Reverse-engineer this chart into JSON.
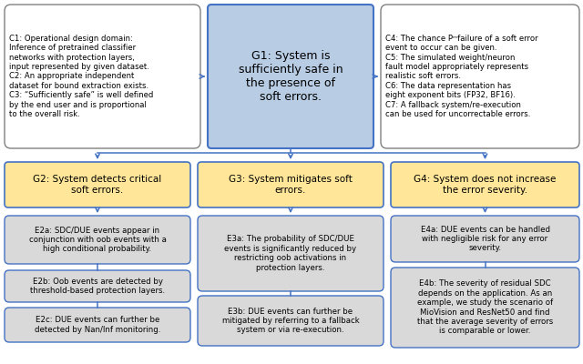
{
  "bg_color": "#ffffff",
  "line_color": "#4472c4",
  "g1_color": "#b8cce4",
  "g1_border": "#4472c4",
  "g234_color": "#ffe699",
  "g234_border": "#4472c4",
  "e_color": "#d9d9d9",
  "e_border": "#4472c4",
  "c_color": "#ffffff",
  "c_border": "#808080",
  "g1_text": "G1: System is\nsufficiently safe in\nthe presence of\nsoft errors.",
  "c_left_text": "C1: Operational design domain:\nInference of pretrained classifier\nnetworks with protection layers,\ninput represented by given dataset.\nC2: An appropriate independent\ndataset for bound extraction exists.\nC3: “Sufficiently safe” is well defined\nby the end user and is proportional\nto the overall risk.",
  "c_right_text": "C4: The chance Pᵐfailure of a soft error\nevent to occur can be given.\nC5: The simulated weight/neuron\nfault model appropriately represents\nrealistic soft errors.\nC6: The data representation has\neight exponent bits (FP32, BF16).\nC7: A fallback system/re-execution\ncan be used for uncorrectable errors.",
  "g2_text": "G2: System detects critical\nsoft errors.",
  "g3_text": "G3: System mitigates soft\nerrors.",
  "g4_text": "G4: System does not increase\nthe error severity.",
  "e2a_text": "E2a: SDC/DUE events appear in\nconjunction with oob events with a\nhigh conditional probability.",
  "e2b_text": "E2b: Oob events are detected by\nthreshold-based protection layers.",
  "e2c_text": "E2c: DUE events can further be\ndetected by Nan/Inf monitoring.",
  "e3a_text": "E3a: The probability of SDC/DUE\nevents is significantly reduced by\nrestricting oob activations in\nprotection layers.",
  "e3b_text": "E3b: DUE events can further be\nmitigated by referring to a fallback\nsystem or via re-execution.",
  "e4a_text": "E4a: DUE events can be handled\nwith negligible risk for any error\nseverity.",
  "e4b_text": "E4b: The severity of residual SDC\ndepends on the application. As an\nexample, we study the scenario of\nMioVision and ResNet50 and find\nthat the average severity of errors\nis comparable or lower."
}
